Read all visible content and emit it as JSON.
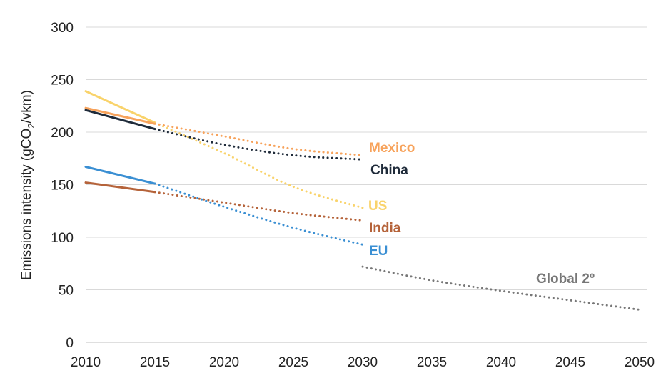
{
  "chart_data": {
    "type": "line",
    "title": "",
    "xlabel": "",
    "ylabel": "Emissions intensity (gCO2/vkm)",
    "ylabel_parts": {
      "pre": "Emissions intensity (gCO",
      "sub": "2",
      "post": "/vkm)"
    },
    "xlim": [
      2010,
      2050
    ],
    "ylim": [
      0,
      300
    ],
    "x_ticks": [
      "2010",
      "2015",
      "2020",
      "2025",
      "2030",
      "2035",
      "2040",
      "2045",
      "2050"
    ],
    "y_ticks": [
      "0",
      "50",
      "100",
      "150",
      "200",
      "250",
      "300"
    ],
    "grid": "horizontal",
    "legend": "direct labels at line ends",
    "series": [
      {
        "name": "Mexico",
        "color": "#f7a35c",
        "historical": [
          [
            2010,
            223
          ],
          [
            2015,
            208
          ]
        ],
        "projected": [
          [
            2015,
            208
          ],
          [
            2020,
            196
          ],
          [
            2025,
            184
          ],
          [
            2030,
            178
          ]
        ]
      },
      {
        "name": "China",
        "color": "#1f2b3a",
        "historical": [
          [
            2010,
            221
          ],
          [
            2015,
            203
          ]
        ],
        "projected": [
          [
            2015,
            203
          ],
          [
            2020,
            188
          ],
          [
            2025,
            178
          ],
          [
            2030,
            174
          ]
        ]
      },
      {
        "name": "US",
        "color": "#f9d36b",
        "historical": [
          [
            2010,
            239
          ],
          [
            2015,
            209
          ]
        ],
        "projected": [
          [
            2015,
            209
          ],
          [
            2020,
            180
          ],
          [
            2025,
            148
          ],
          [
            2030,
            128
          ]
        ]
      },
      {
        "name": "India",
        "color": "#b5633a",
        "historical": [
          [
            2010,
            152
          ],
          [
            2015,
            143
          ]
        ],
        "projected": [
          [
            2015,
            143
          ],
          [
            2020,
            133
          ],
          [
            2025,
            123
          ],
          [
            2030,
            116
          ]
        ]
      },
      {
        "name": "EU",
        "color": "#3a8fd3",
        "historical": [
          [
            2010,
            167
          ],
          [
            2015,
            151
          ]
        ],
        "projected": [
          [
            2015,
            151
          ],
          [
            2020,
            129
          ],
          [
            2025,
            109
          ],
          [
            2030,
            93
          ]
        ]
      },
      {
        "name": "Global 2º",
        "color": "#777777",
        "historical": [],
        "projected": [
          [
            2030,
            72
          ],
          [
            2035,
            59
          ],
          [
            2040,
            49
          ],
          [
            2045,
            40
          ],
          [
            2050,
            31
          ]
        ]
      }
    ]
  }
}
